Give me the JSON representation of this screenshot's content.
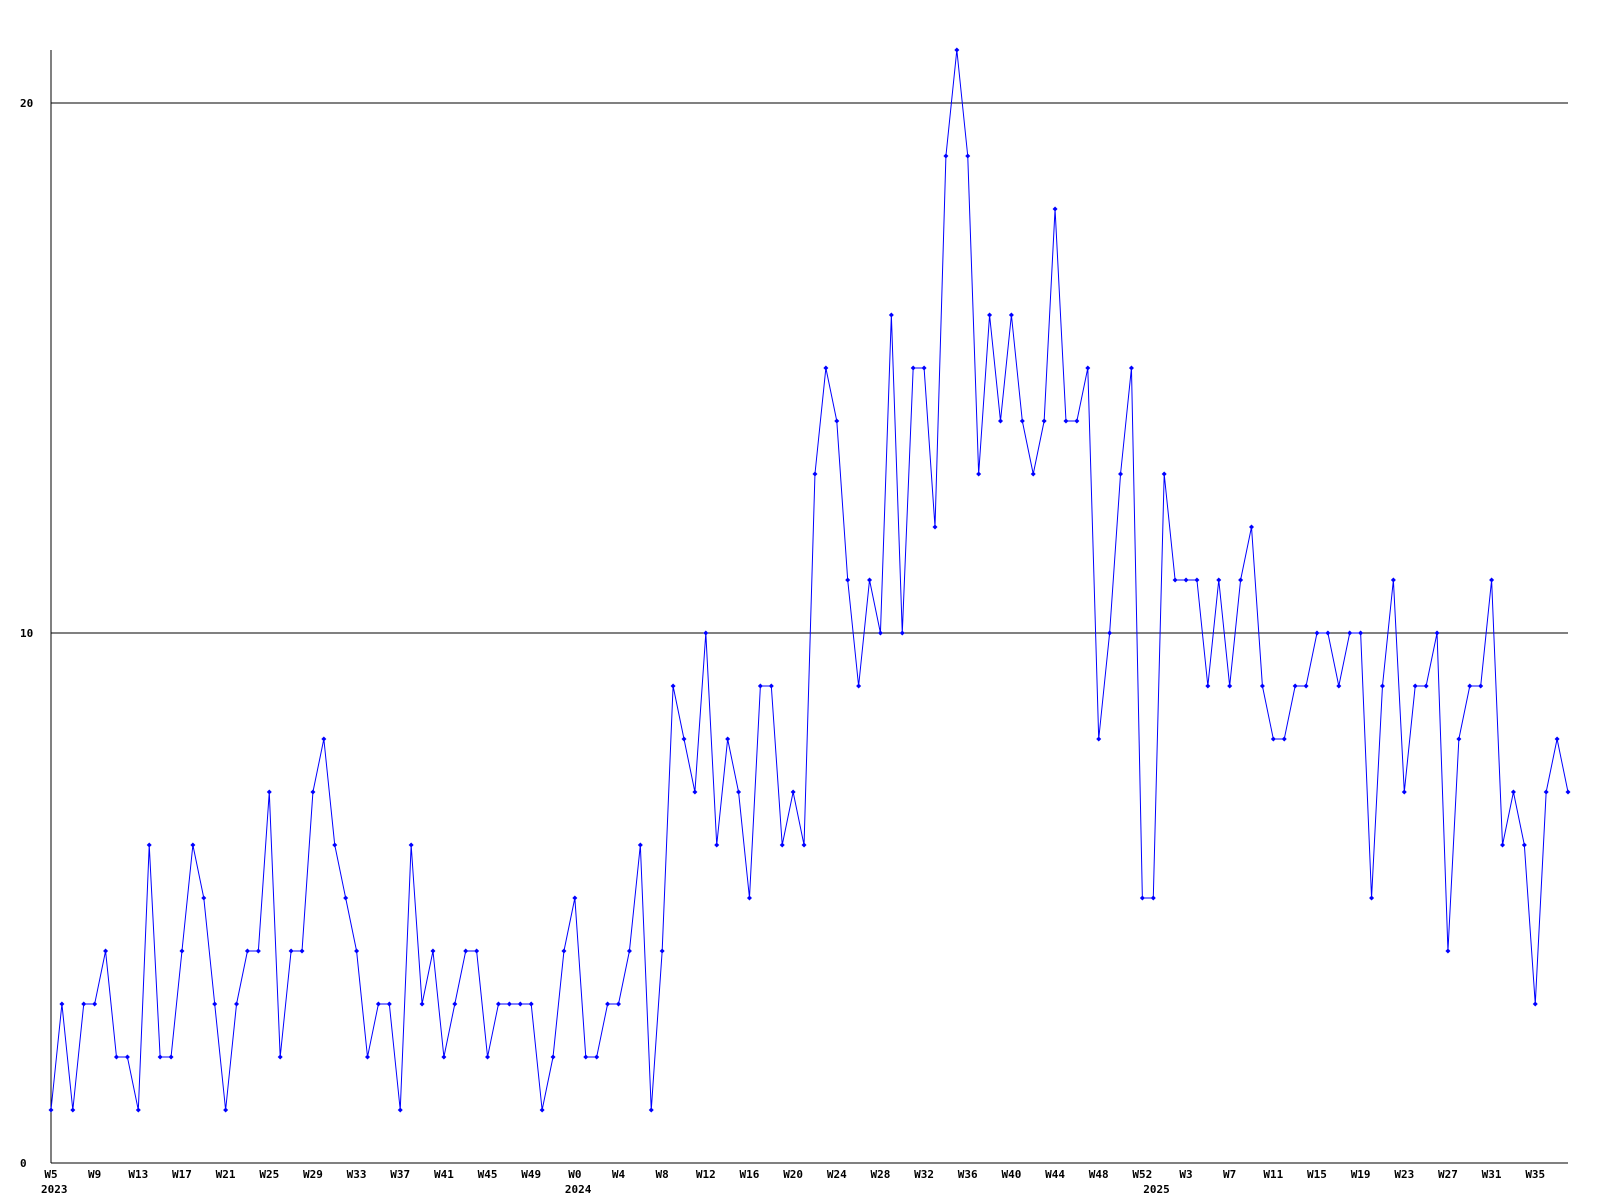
{
  "chart_data": {
    "type": "line",
    "color": "#0000ff",
    "ylim": [
      0,
      21
    ],
    "yticks": [
      0,
      10,
      20
    ],
    "grid": true,
    "categories": [
      "W5",
      null,
      null,
      null,
      "W9",
      null,
      null,
      null,
      "W13",
      null,
      null,
      null,
      "W17",
      null,
      null,
      null,
      "W21",
      null,
      null,
      null,
      "W25",
      null,
      null,
      null,
      "W29",
      null,
      null,
      null,
      "W33",
      null,
      null,
      null,
      "W37",
      null,
      null,
      null,
      "W41",
      null,
      null,
      null,
      "W45",
      null,
      null,
      null,
      "W49",
      null,
      null,
      null,
      "W0",
      null,
      null,
      null,
      "W4",
      null,
      null,
      null,
      "W8",
      null,
      null,
      null,
      "W12",
      null,
      null,
      null,
      "W16",
      null,
      null,
      null,
      "W20",
      null,
      null,
      null,
      "W24",
      null,
      null,
      null,
      "W28",
      null,
      null,
      null,
      "W32",
      null,
      null,
      null,
      "W36",
      null,
      null,
      null,
      "W40",
      null,
      null,
      null,
      "W44",
      null,
      null,
      null,
      "W48",
      null,
      null,
      null,
      "W52",
      null,
      null,
      null,
      "W3",
      null,
      null,
      null,
      "W7",
      null,
      null,
      null,
      "W11",
      null,
      null,
      null,
      "W15",
      null,
      null,
      null,
      "W19",
      null,
      null,
      null,
      "W23",
      null,
      null,
      null,
      "W27",
      null,
      null,
      null,
      "W31",
      null,
      null,
      null,
      "W35",
      null,
      null,
      null
    ],
    "years": [
      "2023",
      null,
      null,
      null,
      null,
      null,
      null,
      null,
      null,
      null,
      null,
      null,
      null,
      null,
      null,
      null,
      null,
      null,
      null,
      null,
      null,
      null,
      null,
      null,
      null,
      null,
      null,
      null,
      null,
      null,
      null,
      null,
      null,
      null,
      null,
      null,
      null,
      null,
      null,
      null,
      null,
      null,
      null,
      null,
      null,
      null,
      null,
      null,
      "2024",
      null,
      null,
      null,
      null,
      null,
      null,
      null,
      null,
      null,
      null,
      null,
      null,
      null,
      null,
      null,
      null,
      null,
      null,
      null,
      null,
      null,
      null,
      null,
      null,
      null,
      null,
      null,
      null,
      null,
      null,
      null,
      null,
      null,
      null,
      null,
      null,
      null,
      null,
      null,
      null,
      null,
      null,
      null,
      null,
      null,
      null,
      null,
      null,
      null,
      null,
      null,
      null,
      "2025",
      null,
      null,
      null,
      null,
      null,
      null,
      null,
      null,
      null,
      null,
      null,
      null,
      null,
      null,
      null,
      null,
      null,
      null,
      null,
      null,
      null,
      null,
      null,
      null,
      null,
      null,
      null,
      null,
      null,
      null,
      null,
      null,
      null,
      null,
      null,
      null,
      null,
      null
    ],
    "values": [
      1,
      3,
      1,
      3,
      3,
      4,
      2,
      2,
      1,
      6,
      2,
      2,
      4,
      6,
      5,
      3,
      1,
      3,
      4,
      4,
      7,
      2,
      4,
      4,
      7,
      8,
      6,
      5,
      4,
      2,
      3,
      3,
      1,
      6,
      3,
      4,
      2,
      3,
      4,
      4,
      2,
      3,
      3,
      3,
      3,
      1,
      2,
      4,
      5,
      2,
      2,
      3,
      3,
      4,
      6,
      1,
      4,
      9,
      8,
      7,
      10,
      6,
      8,
      7,
      5,
      9,
      9,
      6,
      7,
      6,
      13,
      15,
      14,
      11,
      9,
      11,
      10,
      16,
      10,
      15,
      15,
      12,
      19,
      21,
      19,
      13,
      16,
      14,
      16,
      14,
      13,
      14,
      18,
      14,
      14,
      15,
      8,
      10,
      13,
      15,
      5,
      5,
      13,
      11,
      11,
      11,
      9,
      11,
      9,
      11,
      12,
      9,
      8,
      8,
      9,
      9,
      10,
      10,
      9,
      10,
      10,
      5,
      9,
      11,
      7,
      9,
      9,
      10,
      4,
      8,
      9,
      9,
      11,
      6,
      7,
      6,
      3,
      7,
      8,
      7
    ]
  }
}
